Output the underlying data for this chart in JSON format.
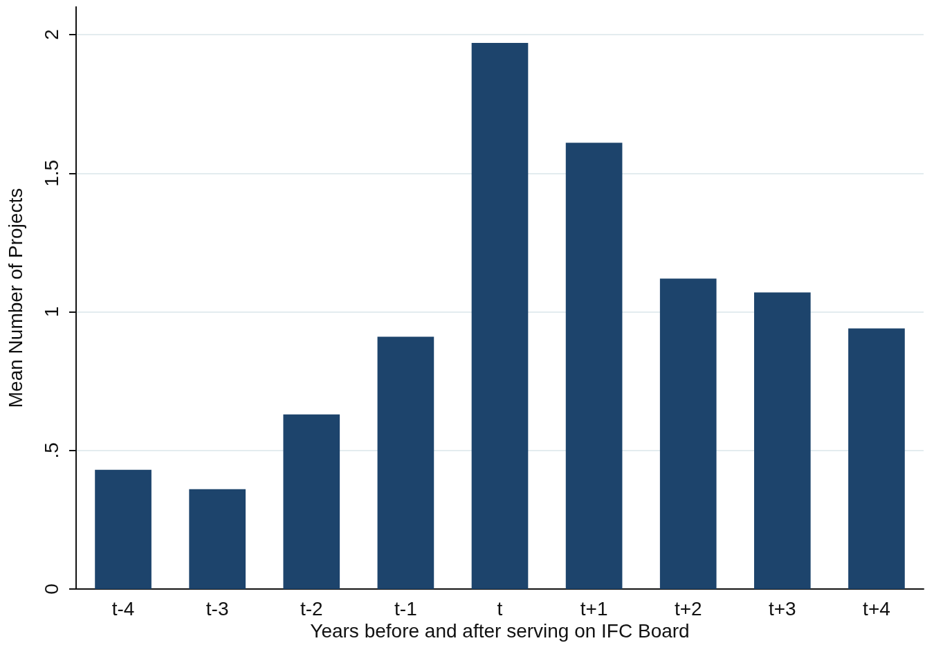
{
  "chart_data": {
    "type": "bar",
    "xlabel": "Years before and after serving on IFC Board",
    "ylabel": "Mean Number of Projects",
    "categories": [
      "t-4",
      "t-3",
      "t-2",
      "t-1",
      "t",
      "t+1",
      "t+2",
      "t+3",
      "t+4"
    ],
    "values": [
      0.43,
      0.36,
      0.63,
      0.91,
      1.97,
      1.61,
      1.12,
      1.07,
      0.94
    ],
    "color": "#1d446c",
    "ylim": [
      0,
      2.1
    ],
    "yticks": [
      0,
      {
        "value": 0.5,
        "label": ".5"
      },
      1,
      1.5,
      2
    ],
    "grid": "y"
  }
}
